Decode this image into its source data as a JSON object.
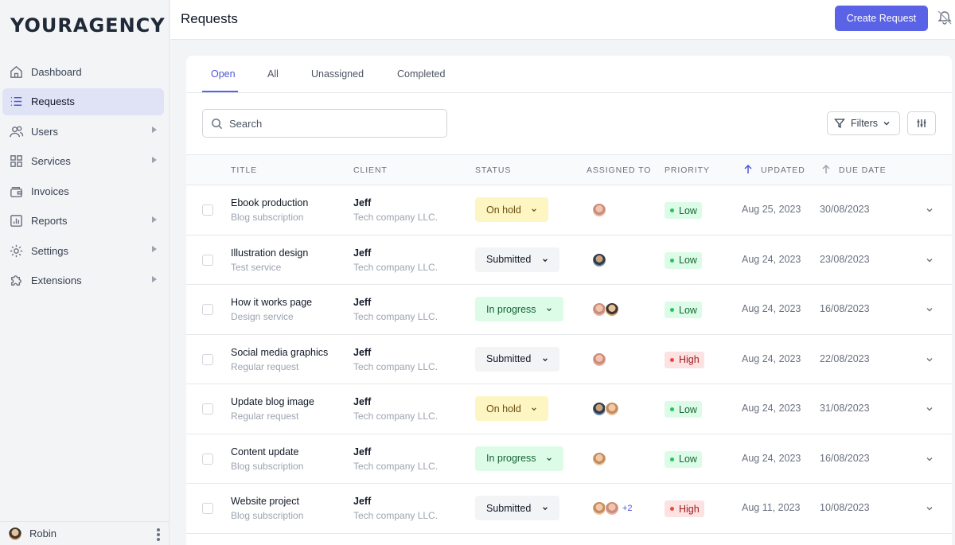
{
  "logo": "YOURAGENCY",
  "sidebar": {
    "items": [
      {
        "label": "Dashboard",
        "icon": "home-icon"
      },
      {
        "label": "Requests",
        "icon": "list-icon",
        "active": true
      },
      {
        "label": "Users",
        "icon": "users-icon",
        "submenu": true
      },
      {
        "label": "Services",
        "icon": "grid-icon",
        "submenu": true
      },
      {
        "label": "Invoices",
        "icon": "wallet-icon"
      },
      {
        "label": "Reports",
        "icon": "chart-icon",
        "submenu": true
      },
      {
        "label": "Settings",
        "icon": "gear-icon",
        "submenu": true
      },
      {
        "label": "Extensions",
        "icon": "puzzle-icon",
        "submenu": true
      }
    ],
    "user": {
      "name": "Robin"
    }
  },
  "header": {
    "title": "Requests",
    "create_label": "Create Request"
  },
  "tabs": [
    "Open",
    "All",
    "Unassigned",
    "Completed"
  ],
  "search": {
    "placeholder": "Search"
  },
  "filters_label": "Filters",
  "columns": {
    "title": "TITLE",
    "client": "CLIENT",
    "status": "STATUS",
    "assigned": "ASSIGNED TO",
    "priority": "PRIORITY",
    "updated": "UPDATED",
    "due": "DUE DATE"
  },
  "rows": [
    {
      "title": "Ebook production",
      "service": "Blog subscription",
      "client": "Jeff",
      "company": "Tech company LLC.",
      "status": "On hold",
      "priority": "Low",
      "updated": "Aug 25, 2023",
      "due": "30/08/2023"
    },
    {
      "title": "Illustration design",
      "service": "Test service",
      "client": "Jeff",
      "company": "Tech company LLC.",
      "status": "Submitted",
      "priority": "Low",
      "updated": "Aug 24, 2023",
      "due": "23/08/2023"
    },
    {
      "title": "How it works page",
      "service": "Design service",
      "client": "Jeff",
      "company": "Tech company LLC.",
      "status": "In progress",
      "priority": "Low",
      "updated": "Aug 24, 2023",
      "due": "16/08/2023"
    },
    {
      "title": "Social media graphics",
      "service": "Regular request",
      "client": "Jeff",
      "company": "Tech company LLC.",
      "status": "Submitted",
      "priority": "High",
      "updated": "Aug 24, 2023",
      "due": "22/08/2023"
    },
    {
      "title": "Update blog image",
      "service": "Regular request",
      "client": "Jeff",
      "company": "Tech company LLC.",
      "status": "On hold",
      "priority": "Low",
      "updated": "Aug 24, 2023",
      "due": "31/08/2023"
    },
    {
      "title": "Content update",
      "service": "Blog subscription",
      "client": "Jeff",
      "company": "Tech company LLC.",
      "status": "In progress",
      "priority": "Low",
      "updated": "Aug 24, 2023",
      "due": "16/08/2023"
    },
    {
      "title": "Website project",
      "service": "Blog subscription",
      "client": "Jeff",
      "company": "Tech company LLC.",
      "status": "Submitted",
      "priority": "High",
      "updated": "Aug 11, 2023",
      "due": "10/08/2023",
      "extra_assignees": "+2"
    }
  ],
  "colors": {
    "accent": "#5a63e6",
    "low": "#22c55e",
    "high": "#ef4444"
  }
}
